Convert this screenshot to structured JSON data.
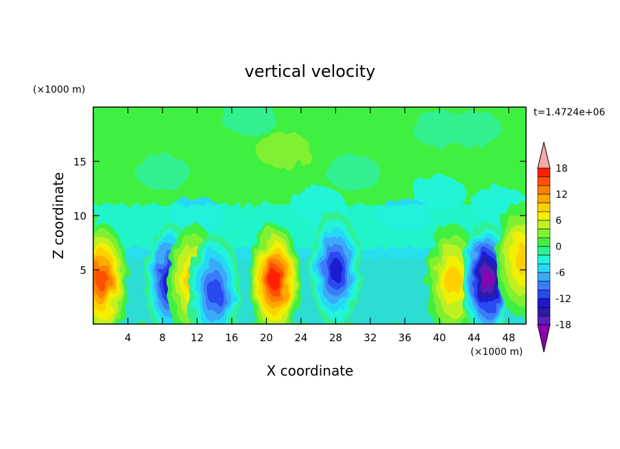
{
  "chart_data": {
    "type": "heatmap",
    "title": "vertical velocity",
    "xlabel": "X coordinate",
    "ylabel": "Z coordinate",
    "x_unit": "(×1000 m)",
    "y_unit": "(×1000 m)",
    "time_label": "t=1.4724e+06",
    "xlim": [
      0,
      50
    ],
    "ylim": [
      0,
      20
    ],
    "x_ticks": [
      "4",
      "8",
      "12",
      "16",
      "20",
      "24",
      "28",
      "32",
      "36",
      "40",
      "44",
      "48"
    ],
    "y_ticks": [
      "5",
      "10",
      "15"
    ],
    "colorbar": {
      "levels": [
        -20,
        -18,
        -16,
        -14,
        -12,
        -10,
        -8,
        -6,
        -4,
        -2,
        0,
        2,
        4,
        6,
        8,
        10,
        12,
        14,
        16,
        18,
        20
      ],
      "tick_labels": [
        "18",
        "12",
        "6",
        "0",
        "-6",
        "-12",
        "-18"
      ],
      "colors": [
        "#8e00b0",
        "#5a1fb8",
        "#2a1aa8",
        "#1a1ad0",
        "#2a4af0",
        "#3a7cfa",
        "#3aaaf8",
        "#28d8f8",
        "#20f4d8",
        "#30f090",
        "#40f040",
        "#80f030",
        "#c0f020",
        "#f0f000",
        "#ffd000",
        "#ffa800",
        "#ff8000",
        "#ff5000",
        "#ff2000",
        "#f8a8a8"
      ]
    },
    "field_features": [
      {
        "type": "updraft",
        "x": 1,
        "z": 4,
        "peak_w": 14
      },
      {
        "type": "downdraft",
        "x": 9,
        "z": 4,
        "peak_w": -14
      },
      {
        "type": "updraft",
        "x": 11.5,
        "z": 4,
        "peak_w": 8
      },
      {
        "type": "downdraft",
        "x": 14,
        "z": 3,
        "peak_w": -10
      },
      {
        "type": "updraft",
        "x": 21,
        "z": 4,
        "peak_w": 16
      },
      {
        "type": "downdraft",
        "x": 28,
        "z": 5,
        "peak_w": -12
      },
      {
        "type": "updraft",
        "x": 41.5,
        "z": 4,
        "peak_w": 8
      },
      {
        "type": "downdraft",
        "x": 45.5,
        "z": 4,
        "peak_w": -18
      },
      {
        "type": "updraft",
        "x": 49.5,
        "z": 6,
        "peak_w": 8
      }
    ]
  }
}
